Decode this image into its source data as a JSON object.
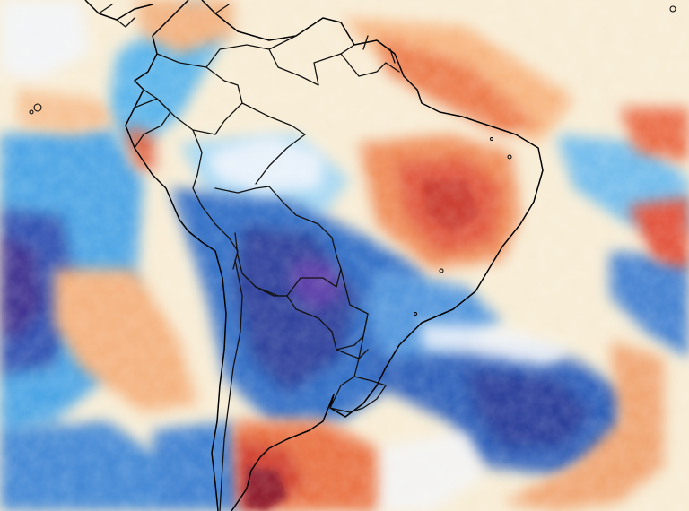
{
  "map": {
    "type": "weather-anomaly-map",
    "region": "South America",
    "colors": {
      "cold_strong": "#2b2f8c",
      "cold_mid": "#2f6fc2",
      "cold_light": "#7fc4ee",
      "neutral": "#f4f6fb",
      "warm_light": "#fbe3bd",
      "warm_mid": "#f29a66",
      "warm_strong": "#d6402a",
      "warm_extreme": "#8a1226",
      "border_line": "#111111"
    }
  }
}
